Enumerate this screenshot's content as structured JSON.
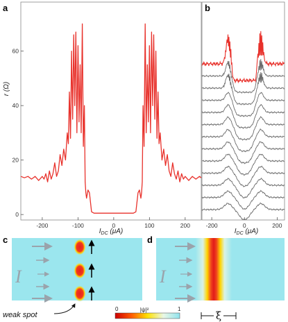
{
  "panels": {
    "a": "a",
    "b": "b",
    "c": "c",
    "d": "d"
  },
  "chart_data": [
    {
      "panel": "a",
      "type": "line",
      "ylabel": "r (Ω)",
      "xlabel": "I_DC (μA)",
      "xlim": [
        -260,
        245
      ],
      "ylim": [
        -2,
        78
      ],
      "xticks": [
        "-200",
        "-100",
        "0",
        "100",
        "200"
      ],
      "yticks": [
        "0",
        "20",
        "40",
        "60"
      ],
      "xtick_values": [
        -200,
        -100,
        0,
        100,
        200
      ],
      "ytick_values": [
        0,
        20,
        40,
        60
      ],
      "series": [
        {
          "color": "#e8312b",
          "x": [
            -260,
            -250,
            -240,
            -230,
            -220,
            -210,
            -200,
            -195,
            -190,
            -185,
            -180,
            -175,
            -170,
            -165,
            -160,
            -155,
            -150,
            -145,
            -140,
            -135,
            -130,
            -127,
            -124,
            -121,
            -118,
            -115,
            -112,
            -109,
            -106,
            -103,
            -100,
            -97,
            -94,
            -91,
            -88,
            -85,
            -82,
            -80,
            -78,
            -76,
            -72,
            -68,
            -62,
            -55,
            -45,
            -35,
            -20,
            0,
            20,
            35,
            45,
            55,
            62,
            68,
            72,
            76,
            78,
            80,
            82,
            85,
            88,
            91,
            94,
            97,
            100,
            103,
            106,
            109,
            112,
            115,
            118,
            121,
            124,
            127,
            130,
            135,
            140,
            145,
            150,
            155,
            160,
            165,
            170,
            175,
            180,
            185,
            190,
            195,
            200,
            210,
            220,
            230,
            240,
            245
          ],
          "y": [
            14,
            13.5,
            14,
            13,
            14,
            12.5,
            14,
            13,
            15,
            12,
            16,
            13,
            15,
            19,
            14,
            16,
            22,
            18,
            24,
            20,
            30,
            26,
            45,
            28,
            60,
            35,
            66,
            40,
            67,
            30,
            62,
            34,
            55,
            30,
            70,
            25,
            40,
            12,
            8,
            6,
            9,
            8,
            1,
            0.5,
            0.5,
            0.5,
            0.5,
            0.5,
            0.5,
            0.5,
            0.5,
            0.5,
            1,
            8,
            9,
            6,
            8,
            12,
            40,
            25,
            70,
            30,
            55,
            34,
            62,
            30,
            67,
            40,
            66,
            35,
            60,
            28,
            45,
            26,
            30,
            20,
            24,
            18,
            22,
            16,
            14,
            19,
            15,
            13,
            16,
            12,
            15,
            13,
            14,
            12.5,
            14,
            13,
            14,
            13.5
          ]
        }
      ]
    },
    {
      "panel": "b",
      "type": "line",
      "xlabel": "I_DC (μA)",
      "xlim": [
        -260,
        245
      ],
      "xticks": [
        "-200",
        "0",
        "200"
      ],
      "xtick_values": [
        -200,
        0,
        200
      ],
      "series": [
        {
          "name": "",
          "color": "#e8312b",
          "values": "top-red"
        },
        {
          "name": "",
          "color": "#6d6d6d",
          "values": "gray"
        }
      ]
    }
  ],
  "schematic": {
    "c": {
      "current_label": "I",
      "annotation": "weak spot"
    },
    "d": {
      "current_label": "I",
      "xi_label": "ξ"
    },
    "colorbar": {
      "min_label": "0",
      "max_label": "1",
      "title": "|ψ|²"
    }
  },
  "colors": {
    "trace_red": "#e8312b",
    "trace_gray": "#6d6d6d",
    "field_cyan": "#9be6ee"
  }
}
